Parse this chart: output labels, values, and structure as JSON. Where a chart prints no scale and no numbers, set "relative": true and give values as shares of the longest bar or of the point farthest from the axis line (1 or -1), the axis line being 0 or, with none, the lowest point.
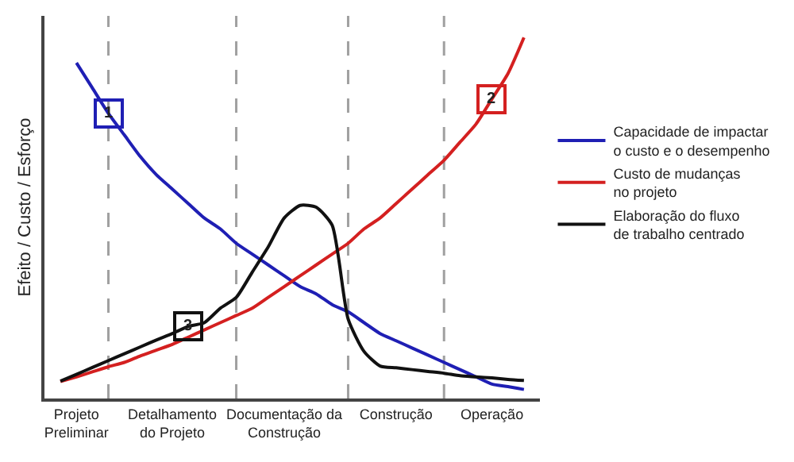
{
  "chart_data": {
    "type": "line",
    "relative": true,
    "ylabel": "Efeito / Custo / Esforço",
    "categories": [
      null,
      "Projeto\nPreliminar",
      null,
      null,
      null,
      null,
      null,
      "Detalhamento\ndo Projeto",
      null,
      null,
      null,
      null,
      null,
      null,
      "Documentação da\nConstrução",
      null,
      null,
      null,
      null,
      null,
      null,
      "Construção",
      null,
      null,
      null,
      null,
      null,
      "Operação",
      null,
      null
    ],
    "series": [
      {
        "name": "Capacidade de impactar\no custo e o desempenho",
        "color": "#1f1fb4",
        "values": [
          null,
          0.93,
          0.86,
          0.79,
          0.73,
          0.67,
          0.62,
          0.58,
          0.54,
          0.5,
          0.47,
          0.43,
          0.4,
          0.37,
          0.34,
          0.31,
          0.29,
          0.26,
          0.24,
          0.21,
          0.18,
          0.16,
          0.14,
          0.12,
          0.1,
          0.08,
          0.06,
          0.04,
          0.033,
          0.025
        ]
      },
      {
        "name": "Custo de mudanças\nno projeto",
        "color": "#d42020",
        "values": [
          0.047,
          0.06,
          0.074,
          0.088,
          0.1,
          0.118,
          0.134,
          0.15,
          0.17,
          0.19,
          0.21,
          0.23,
          0.25,
          0.28,
          0.31,
          0.34,
          0.37,
          0.4,
          0.43,
          0.47,
          0.5,
          0.54,
          0.58,
          0.62,
          0.66,
          0.71,
          0.76,
          0.83,
          0.9,
          1.0
        ]
      },
      {
        "name": "Elaboração do fluxo\nde trabalho centrado",
        "color": "#111111",
        "values": [
          0.048,
          0.067,
          0.086,
          0.105,
          0.124,
          0.143,
          0.162,
          0.18,
          0.2,
          0.21,
          0.25,
          0.28,
          0.35,
          0.42,
          0.5,
          0.535,
          0.53,
          0.48,
          0.22,
          0.13,
          0.09,
          0.085,
          0.08,
          0.075,
          0.07,
          0.063,
          0.06,
          0.057,
          0.053,
          0.05
        ]
      }
    ],
    "annotations": [
      {
        "text": "1",
        "y": 0.79
      },
      {
        "text": "2",
        "y": 0.83
      },
      {
        "text": "3",
        "y": 0.2
      }
    ],
    "legend": "right",
    "grid": "x",
    "marker": "none",
    "line_style": "solid"
  }
}
